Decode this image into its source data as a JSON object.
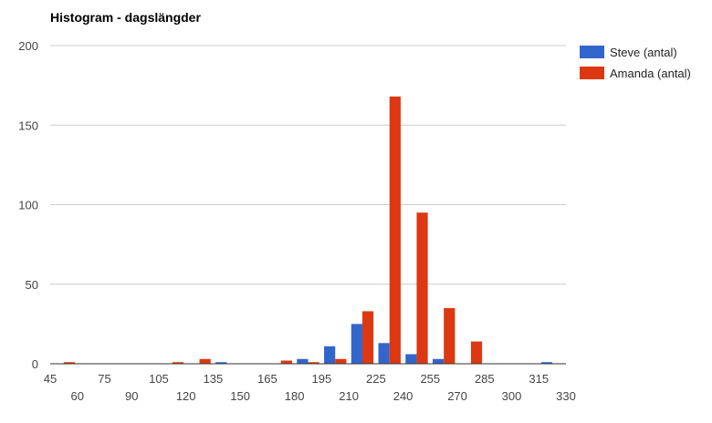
{
  "chart_data": {
    "type": "bar",
    "title": "Histogram - dagslängder",
    "xlabel": "",
    "ylabel": "",
    "ylim": [
      0,
      200
    ],
    "yticks": [
      0,
      50,
      100,
      150,
      200
    ],
    "xlim": [
      45,
      330
    ],
    "xticks_row1": [
      45,
      75,
      105,
      135,
      165,
      195,
      225,
      255,
      285,
      315
    ],
    "xticks_row2": [
      60,
      90,
      120,
      150,
      180,
      210,
      240,
      270,
      300,
      330
    ],
    "bin_width": 15,
    "bin_starts": [
      45,
      60,
      75,
      90,
      105,
      120,
      135,
      150,
      165,
      180,
      195,
      210,
      225,
      240,
      255,
      270,
      285,
      300,
      315
    ],
    "grid": true,
    "legend_position": "right",
    "series": [
      {
        "name": "Steve (antal)",
        "color": "#3366cc",
        "values": [
          0,
          0,
          0,
          0,
          0,
          0,
          1,
          0,
          0,
          3,
          11,
          25,
          13,
          6,
          3,
          0,
          0,
          0,
          1
        ]
      },
      {
        "name": "Amanda (antal)",
        "color": "#dc3912",
        "values": [
          1,
          0,
          0,
          0,
          1,
          3,
          0,
          0,
          2,
          1,
          3,
          33,
          168,
          95,
          35,
          14,
          0,
          0,
          0
        ]
      }
    ]
  }
}
